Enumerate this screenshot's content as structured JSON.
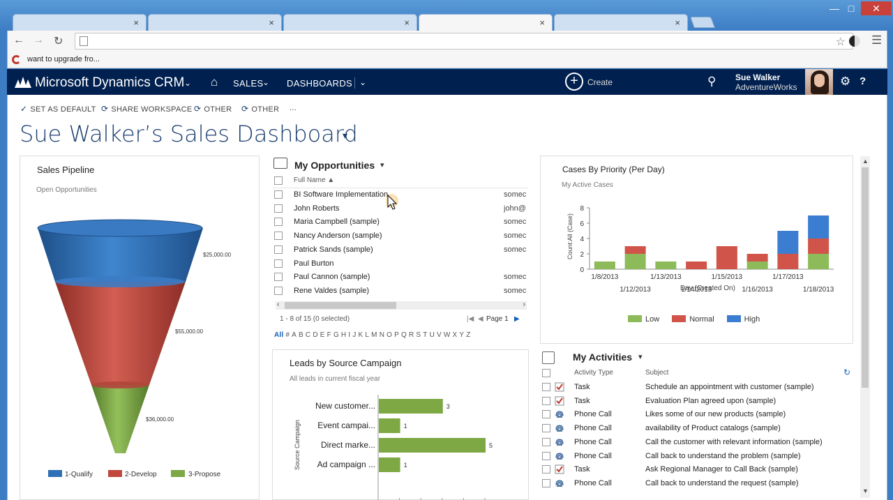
{
  "browser": {
    "tabs": [
      "",
      "",
      "",
      "",
      ""
    ],
    "tab_close": "×",
    "bookmark_label": "want to upgrade fro..."
  },
  "crm_nav": {
    "app_name": "Microsoft Dynamics CRM",
    "sales": "SALES",
    "dashboards": "DASHBOARDS",
    "create": "Create",
    "user_name": "Sue Walker",
    "user_org": "AdventureWorks"
  },
  "command_bar": {
    "set_default": "SET AS DEFAULT",
    "share_workspace": "SHARE WORKSPACE",
    "other1": "OTHER",
    "other2": "OTHER",
    "more": "..."
  },
  "dashboard_title": "Sue Walker’s Sales Dashboard",
  "sales_pipeline": {
    "title": "Sales Pipeline",
    "subtitle": "Open Opportunities",
    "chart_data": {
      "type": "funnel",
      "stages": [
        {
          "name": "1-Qualify",
          "value": 25000,
          "label": "$25,000.00",
          "color": "#2f6fb5"
        },
        {
          "name": "2-Develop",
          "value": 55000,
          "label": "$55,000.00",
          "color": "#c0483d"
        },
        {
          "name": "3-Propose",
          "value": 36000,
          "label": "$36,000.00",
          "color": "#7da844"
        }
      ]
    }
  },
  "opportunities": {
    "title": "My Opportunities",
    "column_full_name": "Full Name",
    "rows": [
      {
        "name": "BI Software Implementation",
        "email": "somec"
      },
      {
        "name": "John Roberts",
        "email": "john@"
      },
      {
        "name": "Maria Campbell (sample)",
        "email": "somec"
      },
      {
        "name": "Nancy Anderson (sample)",
        "email": "somec"
      },
      {
        "name": "Patrick Sands (sample)",
        "email": "somec"
      },
      {
        "name": "Paul Burton",
        "email": ""
      },
      {
        "name": "Paul Cannon (sample)",
        "email": "somec"
      },
      {
        "name": "Rene Valdes (sample)",
        "email": "somec"
      }
    ],
    "record_count": "1 - 8 of 15 (0 selected)",
    "page_label": "Page 1",
    "alpha": [
      "All",
      "#",
      "A",
      "B",
      "C",
      "D",
      "E",
      "F",
      "G",
      "H",
      "I",
      "J",
      "K",
      "L",
      "M",
      "N",
      "O",
      "P",
      "Q",
      "R",
      "S",
      "T",
      "U",
      "V",
      "W",
      "X",
      "Y",
      "Z"
    ]
  },
  "leads": {
    "title": "Leads by Source Campaign",
    "subtitle": "All leads in current fiscal year",
    "chart_data": {
      "type": "bar",
      "orientation": "horizontal",
      "categories": [
        "New customer...",
        "Event campai...",
        "Direct marke...",
        "Ad campaign ..."
      ],
      "values": [
        3,
        1,
        5,
        1
      ],
      "ylabel": "Source Campaign",
      "xlim": [
        0,
        5
      ],
      "color": "#7da844"
    }
  },
  "cases": {
    "title": "Cases By Priority (Per Day)",
    "subtitle": "My Active Cases",
    "chart_data": {
      "type": "bar",
      "stacked": true,
      "categories": [
        "1/8/2013",
        "1/12/2013",
        "1/13/2013",
        "1/14/2013",
        "1/15/2013",
        "1/16/2013",
        "1/17/2013",
        "1/18/2013"
      ],
      "series": [
        {
          "name": "Low",
          "values": [
            1,
            2,
            1,
            0,
            0,
            1,
            0,
            2
          ],
          "color": "#8dbb5a"
        },
        {
          "name": "Normal",
          "values": [
            0,
            1,
            0,
            1,
            3,
            1,
            2,
            2
          ],
          "color": "#d0544a"
        },
        {
          "name": "High",
          "values": [
            0,
            0,
            0,
            0,
            0,
            0,
            3,
            3
          ],
          "color": "#3b7dd0"
        }
      ],
      "xlabel": "Day (Created On)",
      "ylabel": "Count:All (Case)",
      "ylim": [
        0,
        8
      ],
      "yticks": [
        "0",
        "2",
        "4",
        "6",
        "8"
      ],
      "legend": "bottom"
    }
  },
  "activities": {
    "title": "My Activities",
    "col_type": "Activity Type",
    "col_subject": "Subject",
    "rows": [
      {
        "type": "Task",
        "subject": "Schedule an appointment with customer (sample)",
        "icon": "task-icon"
      },
      {
        "type": "Task",
        "subject": "Evaluation Plan agreed upon (sample)",
        "icon": "task-icon"
      },
      {
        "type": "Phone Call",
        "subject": "Likes some of our new products (sample)",
        "icon": "phone-icon"
      },
      {
        "type": "Phone Call",
        "subject": "availability of Product catalogs (sample)",
        "icon": "phone-icon"
      },
      {
        "type": "Phone Call",
        "subject": "Call the customer with relevant information (sample)",
        "icon": "phone-icon"
      },
      {
        "type": "Phone Call",
        "subject": "Call back to understand the problem (sample)",
        "icon": "phone-icon"
      },
      {
        "type": "Task",
        "subject": "Ask Regional Manager to Call Back (sample)",
        "icon": "task-icon"
      },
      {
        "type": "Phone Call",
        "subject": "Call back to understand the request (sample)",
        "icon": "phone-icon"
      }
    ]
  }
}
